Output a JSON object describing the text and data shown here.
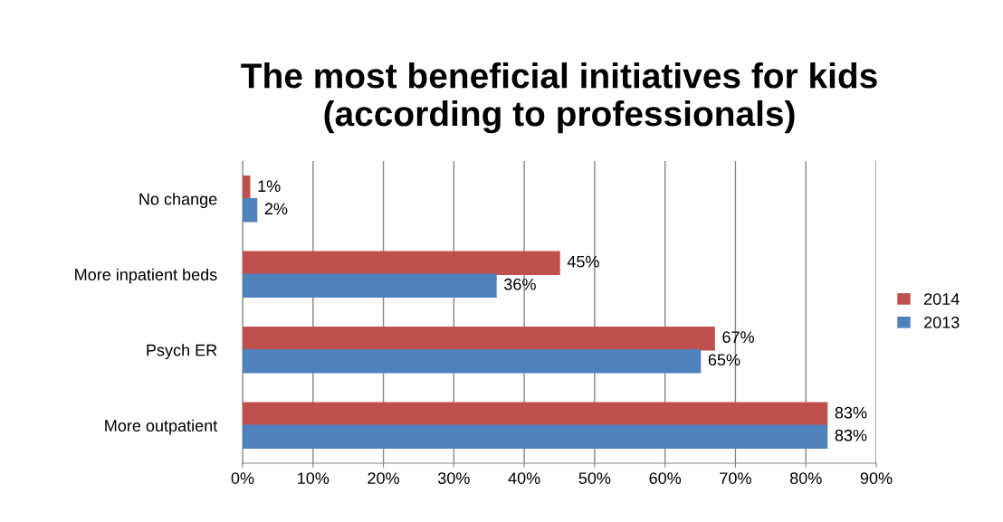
{
  "chart_data": {
    "type": "bar",
    "orientation": "horizontal",
    "title": "The most beneficial initiatives for kids\n(according to professionals)",
    "categories": [
      "No change",
      "More inpatient beds",
      "Psych ER",
      "More outpatient"
    ],
    "series": [
      {
        "name": "2014",
        "color": "#c0504d",
        "values": [
          1,
          45,
          67,
          83
        ],
        "value_labels": [
          "1%",
          "45%",
          "67%",
          "83%"
        ]
      },
      {
        "name": "2013",
        "color": "#4f81bd",
        "values": [
          2,
          36,
          65,
          83
        ],
        "value_labels": [
          "2%",
          "36%",
          "65%",
          "83%"
        ]
      }
    ],
    "xlim": [
      0,
      90
    ],
    "xticks": [
      {
        "value": 0,
        "label": "0%"
      },
      {
        "value": 10,
        "label": "10%"
      },
      {
        "value": 20,
        "label": "20%"
      },
      {
        "value": 30,
        "label": "30%"
      },
      {
        "value": 40,
        "label": "40%"
      },
      {
        "value": 50,
        "label": "50%"
      },
      {
        "value": 60,
        "label": "60%"
      },
      {
        "value": 70,
        "label": "70%"
      },
      {
        "value": 80,
        "label": "80%"
      },
      {
        "value": 90,
        "label": "90%"
      }
    ],
    "grid": "x",
    "legend": "right"
  }
}
